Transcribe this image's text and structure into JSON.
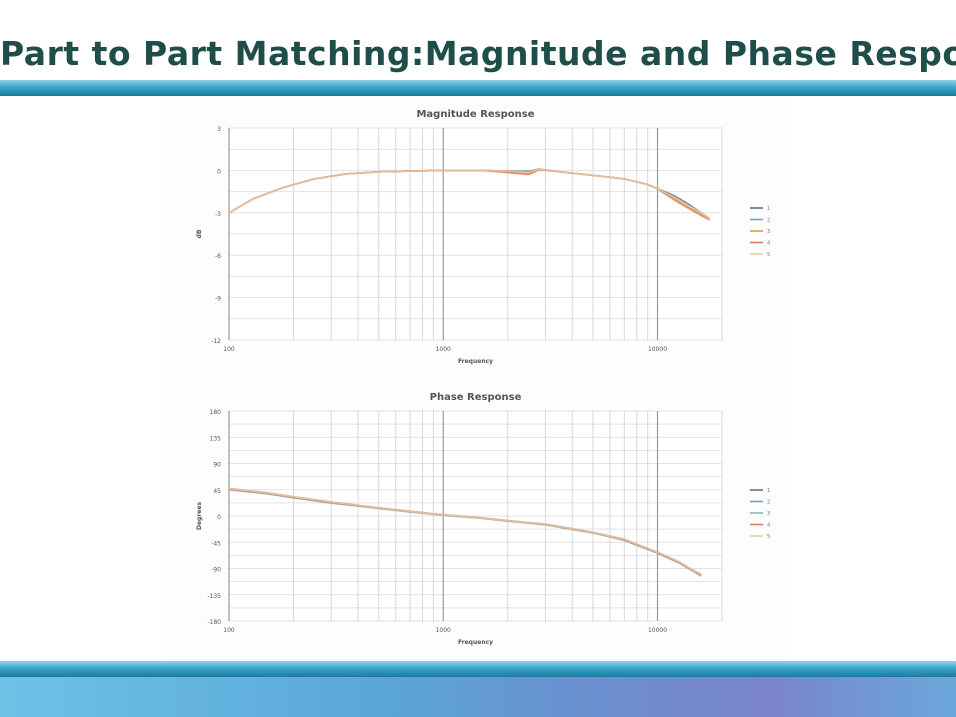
{
  "slide": {
    "title": "Part to Part Matching:Magnitude and Phase Response",
    "colors": {
      "title": "#1e4d4a",
      "bar": "#2f96bd",
      "footer": "#6a9fd6"
    }
  },
  "chart_data": [
    {
      "type": "line",
      "title": "Magnitude Response",
      "xlabel": "Frequency",
      "ylabel": "dB",
      "xscale": "log",
      "xlim": [
        100,
        20000
      ],
      "ylim": [
        -12,
        3
      ],
      "xticks": [
        100,
        1000,
        10000
      ],
      "xtick_labels": [
        "100",
        "1000",
        "10000"
      ],
      "yticks": [
        3,
        0,
        -3,
        -6,
        -9,
        -12
      ],
      "ytick_labels": [
        "3",
        "0",
        "-3",
        "-6",
        "-9",
        "-12"
      ],
      "grid": true,
      "legend_position": "right",
      "x": [
        100,
        130,
        180,
        250,
        350,
        500,
        700,
        1000,
        1500,
        2000,
        2500,
        2800,
        3500,
        5000,
        7000,
        9000,
        10000,
        12000,
        14000,
        16000,
        17500
      ],
      "series": [
        {
          "name": "1",
          "color": "#5b6f8a",
          "values": [
            -3.0,
            -2.0,
            -1.2,
            -0.6,
            -0.25,
            -0.1,
            -0.05,
            0.0,
            0.0,
            -0.05,
            -0.1,
            0.1,
            -0.1,
            -0.35,
            -0.6,
            -1.0,
            -1.3,
            -1.8,
            -2.4,
            -3.0,
            -3.4
          ]
        },
        {
          "name": "2",
          "color": "#7aa0b8",
          "values": [
            -3.0,
            -2.0,
            -1.2,
            -0.6,
            -0.25,
            -0.1,
            -0.05,
            0.0,
            0.0,
            -0.05,
            -0.05,
            0.1,
            -0.1,
            -0.35,
            -0.6,
            -1.0,
            -1.3,
            -1.9,
            -2.5,
            -3.0,
            -3.4
          ]
        },
        {
          "name": "3",
          "color": "#d9a441",
          "values": [
            -3.0,
            -2.0,
            -1.2,
            -0.6,
            -0.25,
            -0.1,
            -0.05,
            0.0,
            0.0,
            -0.1,
            -0.2,
            0.1,
            -0.1,
            -0.35,
            -0.6,
            -1.0,
            -1.3,
            -2.0,
            -2.6,
            -3.1,
            -3.4
          ]
        },
        {
          "name": "4",
          "color": "#e07a5f",
          "values": [
            -3.0,
            -2.0,
            -1.2,
            -0.6,
            -0.25,
            -0.1,
            -0.05,
            0.0,
            0.0,
            -0.15,
            -0.3,
            0.05,
            -0.1,
            -0.35,
            -0.6,
            -1.0,
            -1.3,
            -2.1,
            -2.7,
            -3.2,
            -3.5
          ]
        },
        {
          "name": "5",
          "color": "#e9c9a6",
          "values": [
            -3.0,
            -2.0,
            -1.2,
            -0.6,
            -0.25,
            -0.1,
            -0.05,
            0.0,
            0.0,
            -0.05,
            -0.15,
            0.1,
            -0.1,
            -0.35,
            -0.6,
            -1.0,
            -1.3,
            -1.9,
            -2.5,
            -3.0,
            -3.4
          ]
        }
      ]
    },
    {
      "type": "line",
      "title": "Phase Response",
      "xlabel": "Frequency",
      "ylabel": "Degrees",
      "xscale": "log",
      "xlim": [
        100,
        20000
      ],
      "ylim": [
        -180,
        180
      ],
      "xticks": [
        100,
        1000,
        10000
      ],
      "xtick_labels": [
        "100",
        "1000",
        "10000"
      ],
      "yticks": [
        180,
        135,
        90,
        45,
        0,
        -45,
        -90,
        -135,
        -180
      ],
      "ytick_labels": [
        "180",
        "135",
        "90",
        "45",
        "0",
        "-45",
        "-90",
        "-135",
        "-180"
      ],
      "grid": true,
      "legend_position": "right",
      "x": [
        100,
        150,
        200,
        300,
        500,
        700,
        1000,
        1500,
        2000,
        3000,
        5000,
        7000,
        10000,
        12500,
        15000,
        16000
      ],
      "series": [
        {
          "name": "1",
          "color": "#5b6f8a",
          "values": [
            47,
            40,
            33,
            24,
            14,
            8,
            2,
            -3,
            -8,
            -14,
            -28,
            -40,
            -62,
            -78,
            -95,
            -100
          ]
        },
        {
          "name": "2",
          "color": "#7aa0b8",
          "values": [
            46,
            39,
            32,
            23,
            13,
            7,
            2,
            -3,
            -8,
            -15,
            -29,
            -41,
            -63,
            -79,
            -96,
            -102
          ]
        },
        {
          "name": "3",
          "color": "#8fb9a8",
          "values": [
            45,
            38,
            31,
            22,
            13,
            7,
            1,
            -4,
            -9,
            -15,
            -29,
            -42,
            -64,
            -80,
            -97,
            -103
          ]
        },
        {
          "name": "4",
          "color": "#e07a5f",
          "values": [
            46,
            39,
            32,
            23,
            14,
            8,
            2,
            -3,
            -8,
            -14,
            -28,
            -41,
            -63,
            -79,
            -96,
            -101
          ]
        },
        {
          "name": "5",
          "color": "#e9c9a6",
          "values": [
            47,
            40,
            33,
            24,
            14,
            8,
            2,
            -3,
            -8,
            -14,
            -28,
            -40,
            -62,
            -78,
            -95,
            -100
          ]
        }
      ]
    }
  ]
}
